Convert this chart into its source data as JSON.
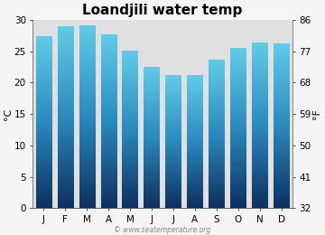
{
  "title": "Loandjili water temp",
  "months": [
    "J",
    "F",
    "M",
    "A",
    "M",
    "J",
    "J",
    "A",
    "S",
    "O",
    "N",
    "D"
  ],
  "values_c": [
    27.2,
    28.8,
    29.0,
    27.6,
    25.0,
    22.3,
    21.0,
    21.1,
    23.5,
    25.4,
    26.3,
    26.1
  ],
  "ylim_c": [
    0,
    30
  ],
  "yticks_c": [
    0,
    5,
    10,
    15,
    20,
    25,
    30
  ],
  "yticks_f": [
    32,
    41,
    50,
    59,
    68,
    77,
    86
  ],
  "ylabel_left": "°C",
  "ylabel_right": "°F",
  "bar_color_top": "#60cce8",
  "bar_color_mid": "#2a8abf",
  "bar_color_bottom": "#0d3060",
  "plot_bg": "#e0e0e0",
  "fig_bg": "#f5f5f5",
  "watermark": "© www.seatemperature.org",
  "title_fontsize": 11,
  "axis_label_fontsize": 8,
  "tick_fontsize": 7.5
}
